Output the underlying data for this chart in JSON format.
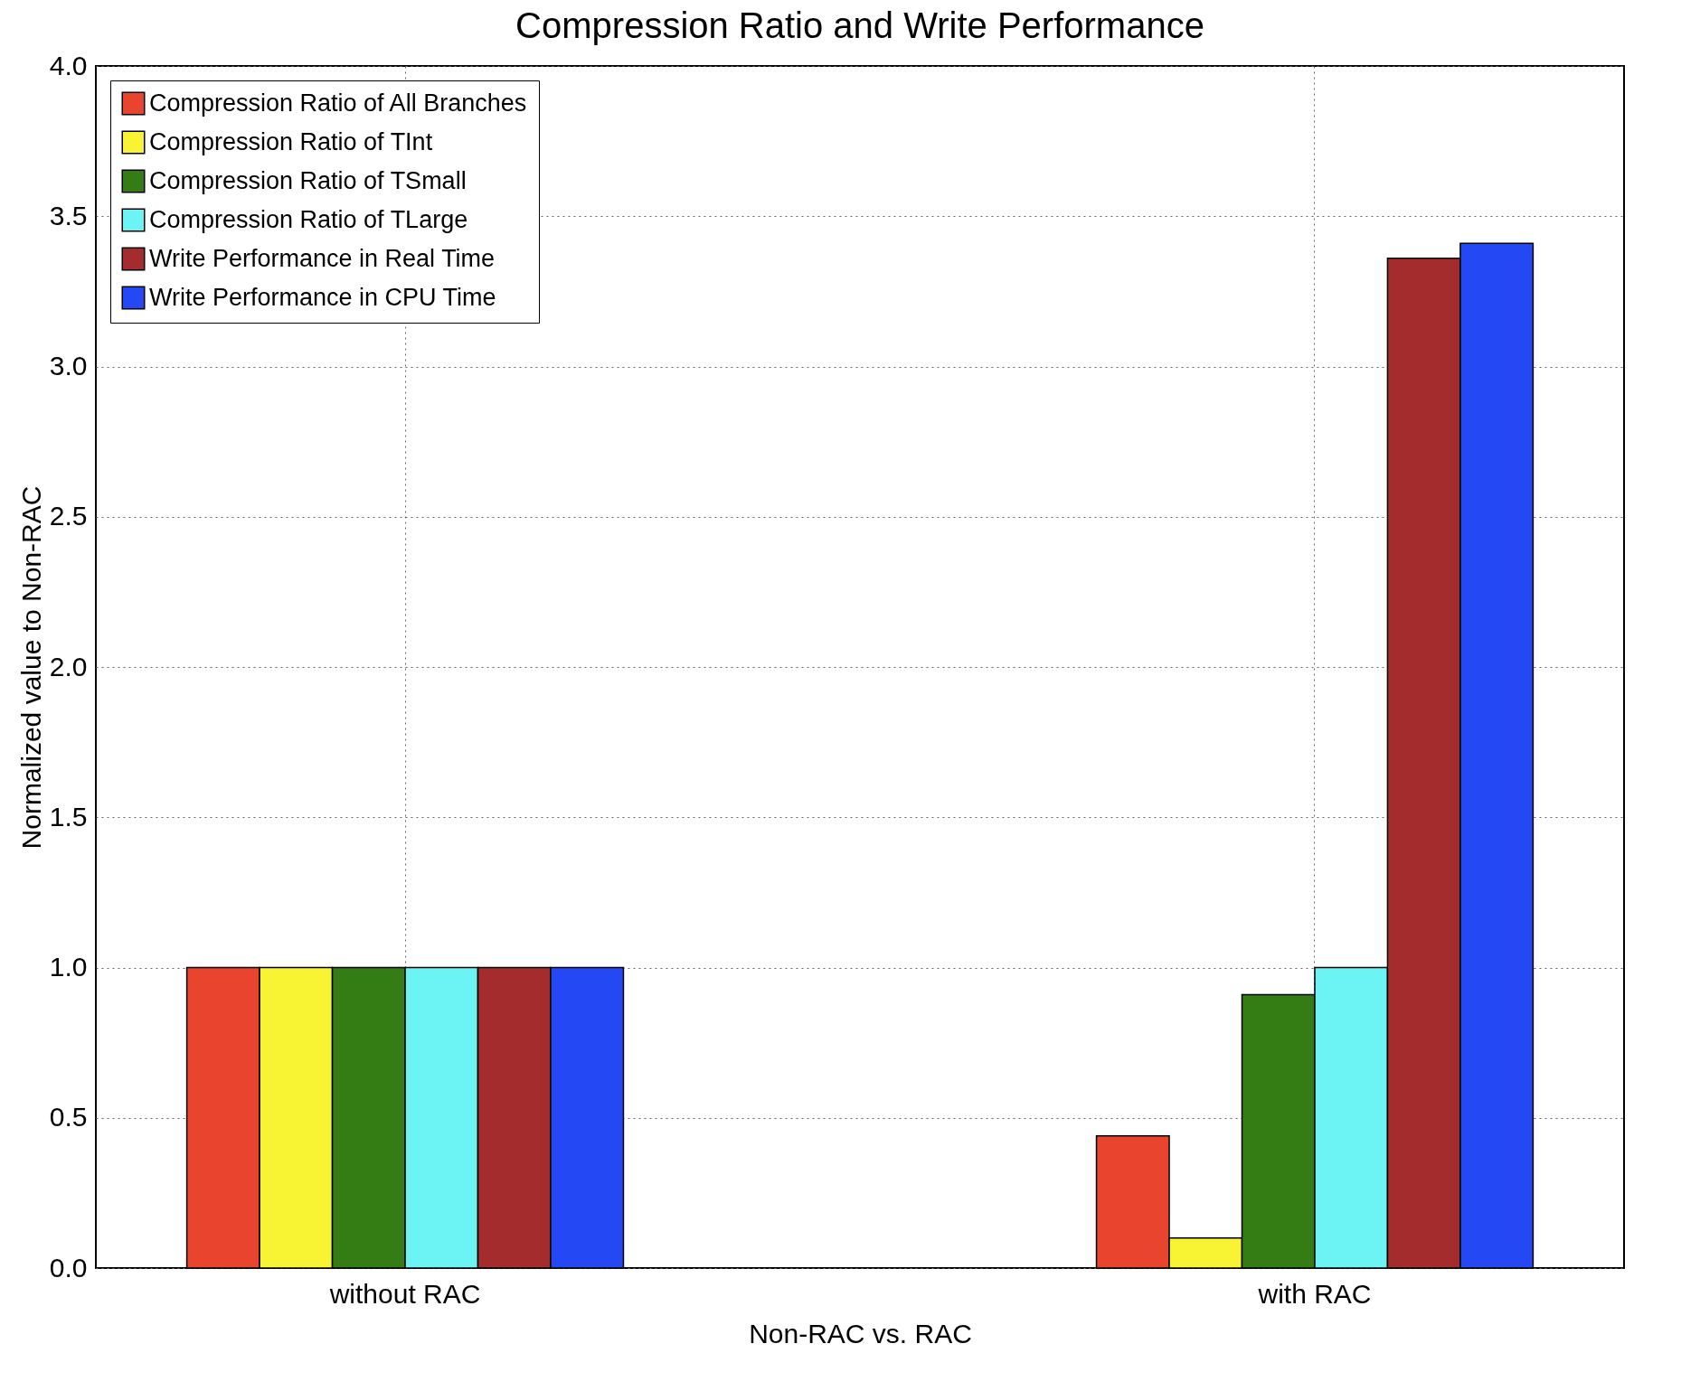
{
  "chart_data": {
    "type": "bar",
    "title": "Compression Ratio and Write Performance",
    "xlabel": "Non-RAC vs. RAC",
    "ylabel": "Normalized value to Non-RAC",
    "categories": [
      "without RAC",
      "with RAC"
    ],
    "series": [
      {
        "name": "Compression Ratio of All Branches",
        "color": "#e8442e",
        "values": [
          1.0,
          0.44
        ]
      },
      {
        "name": "Compression Ratio of TInt",
        "color": "#f8f434",
        "values": [
          1.0,
          0.1
        ]
      },
      {
        "name": "Compression Ratio of TSmall",
        "color": "#347c14",
        "values": [
          1.0,
          0.91
        ]
      },
      {
        "name": "Compression Ratio of TLarge",
        "color": "#6cf4f4",
        "values": [
          1.0,
          1.0
        ]
      },
      {
        "name": "Write Performance in Real Time",
        "color": "#a42c2c",
        "values": [
          1.0,
          3.36
        ]
      },
      {
        "name": "Write Performance in CPU Time",
        "color": "#2449f4",
        "values": [
          1.0,
          3.41
        ]
      }
    ],
    "ylim": [
      0,
      4
    ],
    "yticks": [
      {
        "value": 0,
        "label": "0.0"
      },
      {
        "value": 0.5,
        "label": "0.5"
      },
      {
        "value": 1,
        "label": "1.0"
      },
      {
        "value": 1.5,
        "label": "1.5"
      },
      {
        "value": 2,
        "label": "2.0"
      },
      {
        "value": 2.5,
        "label": "2.5"
      },
      {
        "value": 3,
        "label": "3.0"
      },
      {
        "value": 3.5,
        "label": "3.5"
      },
      {
        "value": 4,
        "label": "4.0"
      }
    ],
    "grid": true,
    "legend": "top left"
  }
}
